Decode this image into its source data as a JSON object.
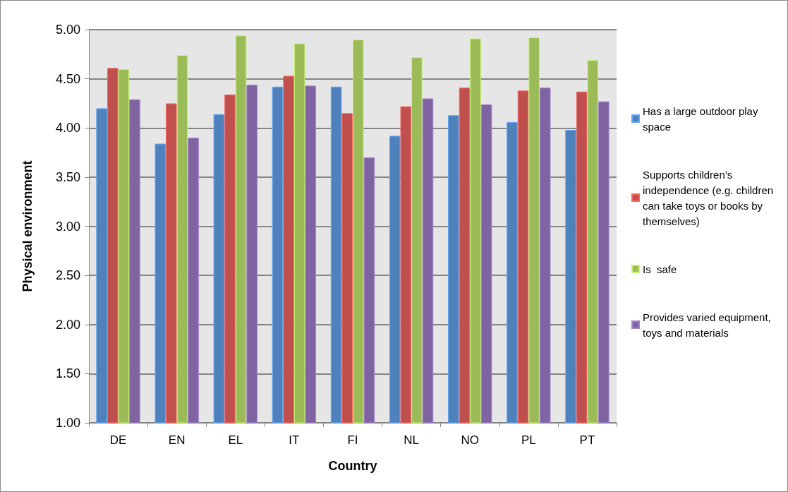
{
  "chart_data": {
    "type": "bar",
    "xlabel": "Country",
    "ylabel": "Physical environment",
    "categories": [
      "DE",
      "EN",
      "EL",
      "IT",
      "FI",
      "NL",
      "NO",
      "PL",
      "PT"
    ],
    "series": [
      {
        "name": "Has a large outdoor play space",
        "color": "#4f81bd",
        "values": [
          4.2,
          3.84,
          4.14,
          4.42,
          4.42,
          3.92,
          4.13,
          4.06,
          3.98
        ]
      },
      {
        "name": "Supports children’s independence (e.g. children can take toys or books by themselves)",
        "color": "#c0504d",
        "values": [
          4.61,
          4.25,
          4.34,
          4.53,
          4.15,
          4.22,
          4.41,
          4.38,
          4.37
        ]
      },
      {
        "name": "Is  safe",
        "color": "#9bbb59",
        "values": [
          4.6,
          4.74,
          4.94,
          4.86,
          4.9,
          4.72,
          4.91,
          4.92,
          4.69
        ]
      },
      {
        "name": "Provides varied equipment, toys and materials",
        "color": "#8064a2",
        "values": [
          4.29,
          3.9,
          4.44,
          4.43,
          3.7,
          4.3,
          4.24,
          4.41,
          4.27
        ]
      }
    ],
    "ylim": [
      1,
      5
    ],
    "yticks": [
      {
        "value": 1,
        "label": "1.00"
      },
      {
        "value": 1.5,
        "label": "1.50"
      },
      {
        "value": 2,
        "label": "2.00"
      },
      {
        "value": 2.5,
        "label": "2.50"
      },
      {
        "value": 3,
        "label": "3.00"
      },
      {
        "value": 3.5,
        "label": "3.50"
      },
      {
        "value": 4,
        "label": "4.00"
      },
      {
        "value": 4.5,
        "label": "4.50"
      },
      {
        "value": 5,
        "label": "5.00"
      }
    ],
    "grid": "y",
    "legend": "right"
  }
}
